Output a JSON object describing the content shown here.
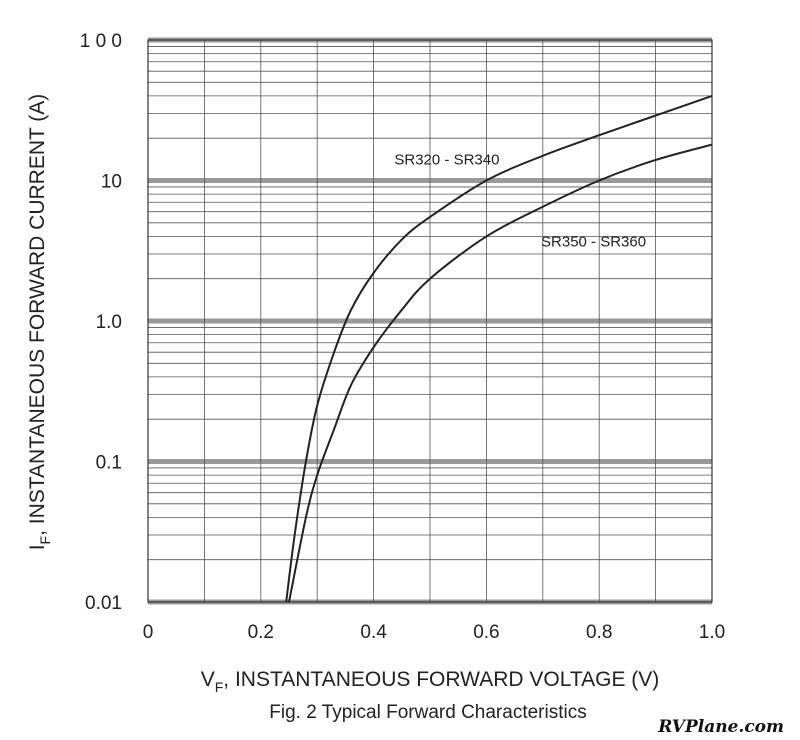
{
  "chart_data": {
    "type": "line",
    "title": "",
    "caption": "Fig. 2  Typical Forward Characteristics",
    "xlabel": {
      "symbol": "V",
      "subscript": "F",
      "text": ", INSTANTANEOUS FORWARD VOLTAGE (V)"
    },
    "ylabel": {
      "symbol": "I",
      "subscript": "F",
      "text": ", INSTANTANEOUS FORWARD CURRENT (A)"
    },
    "xlim": [
      0,
      1.0
    ],
    "ylim": [
      0.01,
      100
    ],
    "yscale": "log",
    "grid": true,
    "x_ticks": [
      {
        "value": 0,
        "label": "0"
      },
      {
        "value": 0.2,
        "label": "0.2"
      },
      {
        "value": 0.4,
        "label": "0.4"
      },
      {
        "value": 0.6,
        "label": "0.6"
      },
      {
        "value": 0.8,
        "label": "0.8"
      },
      {
        "value": 1.0,
        "label": "1.0"
      }
    ],
    "y_ticks": [
      {
        "value": 0.01,
        "label": "0.01"
      },
      {
        "value": 0.1,
        "label": "0.1"
      },
      {
        "value": 1,
        "label": "1.0"
      },
      {
        "value": 10,
        "label": "10"
      },
      {
        "value": 100,
        "label": "1 0 0"
      }
    ],
    "series": [
      {
        "name": "SR320 - SR340",
        "label_anchor": {
          "x": 0.53,
          "y": 13
        },
        "x": [
          0.245,
          0.26,
          0.28,
          0.3,
          0.33,
          0.36,
          0.4,
          0.45,
          0.5,
          0.6,
          0.7,
          0.8,
          0.9,
          1.0
        ],
        "y": [
          0.01,
          0.03,
          0.1,
          0.25,
          0.6,
          1.2,
          2.2,
          3.8,
          5.5,
          10,
          15,
          21,
          29,
          40
        ]
      },
      {
        "name": "SR350 - SR360",
        "label_anchor": {
          "x": 0.79,
          "y": 3.4
        },
        "x": [
          0.25,
          0.28,
          0.3,
          0.33,
          0.36,
          0.4,
          0.45,
          0.5,
          0.6,
          0.7,
          0.8,
          0.9,
          1.0
        ],
        "y": [
          0.01,
          0.04,
          0.08,
          0.17,
          0.35,
          0.65,
          1.2,
          2.0,
          4.0,
          6.5,
          10,
          14,
          18
        ]
      }
    ]
  },
  "watermark": "RVPlane.com"
}
